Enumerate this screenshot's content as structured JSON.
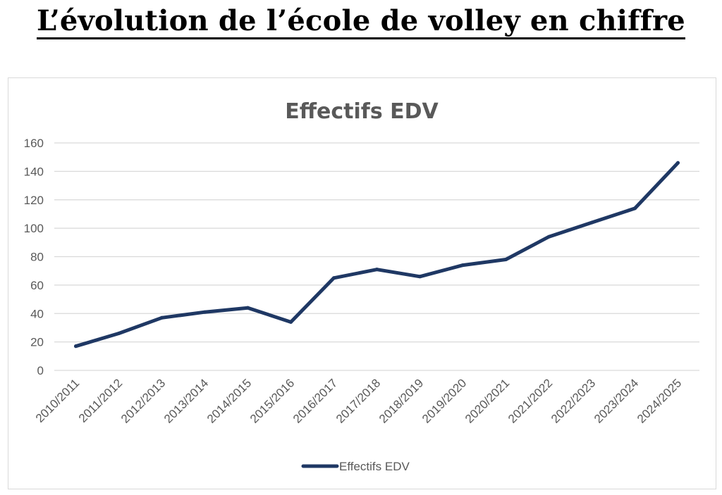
{
  "page": {
    "heading": "L’évolution de l’école de volley en chiffre"
  },
  "chart_data": {
    "type": "line",
    "title": "Effectifs EDV",
    "categories": [
      "2010/2011",
      "2011/2012",
      "2012/2013",
      "2013/2014",
      "2014/2015",
      "2015/2016",
      "2016/2017",
      "2017/2018",
      "2018/2019",
      "2019/2020",
      "2020/2021",
      "2021/2022",
      "2022/2023",
      "2023/2024",
      "2024/2025"
    ],
    "series": [
      {
        "name": "Effectifs EDV",
        "color": "#1f3864",
        "values": [
          17,
          26,
          37,
          41,
          44,
          34,
          65,
          71,
          66,
          74,
          78,
          94,
          104,
          114,
          146
        ]
      }
    ],
    "ylim": [
      0,
      160
    ],
    "yticks": [
      0,
      20,
      40,
      60,
      80,
      100,
      120,
      140,
      160
    ],
    "grid": true,
    "legend": "bottom"
  }
}
